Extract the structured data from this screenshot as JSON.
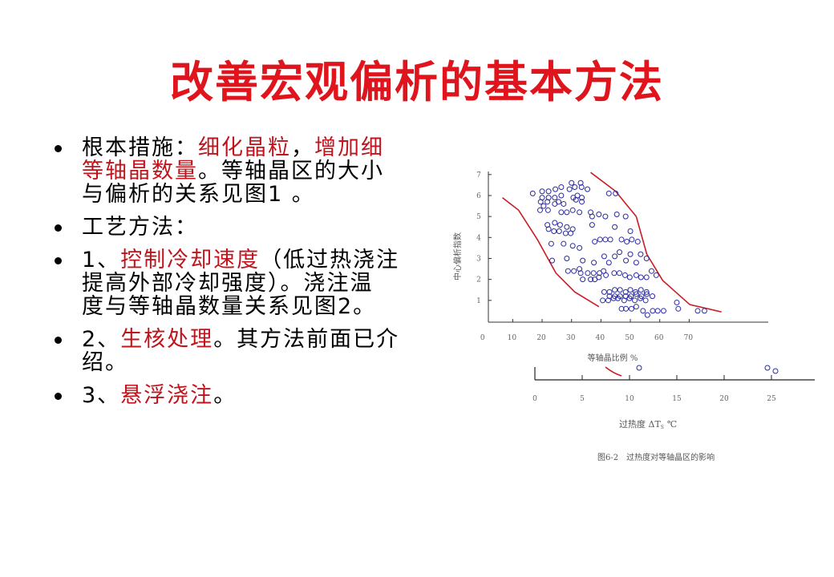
{
  "title": "改善宏观偏析的基本方法",
  "bullets": [
    {
      "lines": [
        [
          {
            "text": "根本措施：",
            "red": false
          },
          {
            "text": "细化晶粒",
            "red": true
          },
          {
            "text": "，",
            "red": false
          },
          {
            "text": "增加细",
            "red": true
          }
        ],
        [
          {
            "text": "等轴晶数量",
            "red": true
          },
          {
            "text": "。等轴晶区的大小",
            "red": false
          }
        ],
        [
          {
            "text": "与偏析的关系见图1 。",
            "red": false
          }
        ]
      ]
    },
    {
      "lines": [
        [
          {
            "text": "工艺方法：",
            "red": false
          }
        ]
      ]
    },
    {
      "lines": [
        [
          {
            "text": " 1、",
            "red": false
          },
          {
            "text": "控制冷却速度",
            "red": true
          },
          {
            "text": "（低过热浇注",
            "red": false
          }
        ],
        [
          {
            "text": "提高外部冷却强度）。浇注温",
            "red": false
          }
        ],
        [
          {
            "text": "度与等轴晶数量关系见图2。",
            "red": false
          }
        ]
      ]
    },
    {
      "lines": [
        [
          {
            "text": "2、",
            "red": false
          },
          {
            "text": "生核处理",
            "red": true
          },
          {
            "text": "。其方法前面已介",
            "red": false
          }
        ],
        [
          {
            "text": "绍。",
            "red": false
          }
        ]
      ]
    },
    {
      "lines": [
        [
          {
            "text": "3、",
            "red": false
          },
          {
            "text": "悬浮浇注",
            "red": true
          },
          {
            "text": "。",
            "red": false
          }
        ]
      ]
    }
  ],
  "colors": {
    "title": "#e0141c",
    "highlight": "#c0141c",
    "points": "#2a2aa0",
    "curves": "#c81e28"
  },
  "chart_data": [
    {
      "type": "scatter",
      "xlabel": "等轴晶比例 %",
      "ylabel": "中心偏析指数",
      "xlim": [
        0,
        80
      ],
      "ylim": [
        0,
        7
      ],
      "xticks": [
        "0",
        "10",
        "20",
        "30",
        "40",
        "50",
        "60",
        "70"
      ],
      "yticks": [
        "1",
        "2",
        "3",
        "4",
        "5",
        "6",
        "7"
      ],
      "grid": false,
      "points": [
        [
          16.8,
          6.1
        ],
        [
          20,
          6.2
        ],
        [
          22.2,
          6.2
        ],
        [
          24.5,
          6.3
        ],
        [
          26.5,
          6.4
        ],
        [
          20,
          5.9
        ],
        [
          22.2,
          5.9
        ],
        [
          24.3,
          5.9
        ],
        [
          26.5,
          6.0
        ],
        [
          29.3,
          6.3
        ],
        [
          30,
          6.6
        ],
        [
          31.1,
          6.4
        ],
        [
          33.1,
          6.6
        ],
        [
          33.4,
          6.4
        ],
        [
          35.4,
          6.3
        ],
        [
          30.6,
          5.9
        ],
        [
          32,
          6.0
        ],
        [
          33.5,
          5.9
        ],
        [
          31.5,
          5.8
        ],
        [
          33.5,
          5.7
        ],
        [
          19.5,
          5.7
        ],
        [
          21.8,
          5.7
        ],
        [
          25.6,
          5.7
        ],
        [
          27.3,
          5.6
        ],
        [
          24.3,
          5.6
        ],
        [
          20.5,
          5.5
        ],
        [
          19.3,
          5.3
        ],
        [
          22,
          5.3
        ],
        [
          26.5,
          5.2
        ],
        [
          28.4,
          5.2
        ],
        [
          30.4,
          5.3
        ],
        [
          32.7,
          5.2
        ],
        [
          36.5,
          5.2
        ],
        [
          37,
          5.0
        ],
        [
          39.3,
          5.1
        ],
        [
          41.5,
          5.0
        ],
        [
          42.7,
          6.1
        ],
        [
          45,
          6.1
        ],
        [
          45.4,
          5.1
        ],
        [
          48.4,
          5.0
        ],
        [
          21.8,
          4.6
        ],
        [
          24.3,
          4.7
        ],
        [
          26.1,
          4.6
        ],
        [
          28.4,
          4.5
        ],
        [
          22.2,
          4.4
        ],
        [
          24,
          4.3
        ],
        [
          25.8,
          4.3
        ],
        [
          28,
          4.2
        ],
        [
          29.7,
          4.2
        ],
        [
          30.4,
          4.4
        ],
        [
          37,
          4.6
        ],
        [
          44.7,
          4.5
        ],
        [
          50,
          4.3
        ],
        [
          23.1,
          3.7
        ],
        [
          27.3,
          3.7
        ],
        [
          30.4,
          3.6
        ],
        [
          32.7,
          3.5
        ],
        [
          37.9,
          3.8
        ],
        [
          39.7,
          3.9
        ],
        [
          41.5,
          3.9
        ],
        [
          43.2,
          3.9
        ],
        [
          47,
          3.9
        ],
        [
          48.8,
          3.8
        ],
        [
          50.5,
          3.9
        ],
        [
          52.5,
          3.8
        ],
        [
          23.4,
          2.9
        ],
        [
          28.4,
          3.0
        ],
        [
          33.8,
          2.9
        ],
        [
          37.6,
          2.8
        ],
        [
          41.1,
          3.1
        ],
        [
          42.7,
          2.8
        ],
        [
          44.7,
          3.1
        ],
        [
          46.3,
          3.3
        ],
        [
          48.5,
          2.9
        ],
        [
          50,
          3.2
        ],
        [
          52,
          2.8
        ],
        [
          53.5,
          3.2
        ],
        [
          55.5,
          3.0
        ],
        [
          28.8,
          2.4
        ],
        [
          30.8,
          2.4
        ],
        [
          32.7,
          2.5
        ],
        [
          33.1,
          2.3
        ],
        [
          35.5,
          2.3
        ],
        [
          37.5,
          2.3
        ],
        [
          39.5,
          2.3
        ],
        [
          40.9,
          2.4
        ],
        [
          33.8,
          2.0
        ],
        [
          36.5,
          2.0
        ],
        [
          37.9,
          2.0
        ],
        [
          39.3,
          2.1
        ],
        [
          41.7,
          2.2
        ],
        [
          44.5,
          2.3
        ],
        [
          46.3,
          2.3
        ],
        [
          48.2,
          2.2
        ],
        [
          49.8,
          2.1
        ],
        [
          52,
          2.2
        ],
        [
          53.6,
          2.1
        ],
        [
          55.5,
          2.1
        ],
        [
          57.2,
          2.4
        ],
        [
          58.8,
          2.2
        ],
        [
          41.1,
          1.4
        ],
        [
          42.9,
          1.4
        ],
        [
          44.7,
          1.5
        ],
        [
          46.5,
          1.5
        ],
        [
          48.4,
          1.4
        ],
        [
          50,
          1.5
        ],
        [
          51.8,
          1.4
        ],
        [
          53.6,
          1.5
        ],
        [
          55.5,
          1.4
        ],
        [
          42.9,
          1.2
        ],
        [
          44.7,
          1.2
        ],
        [
          46.5,
          1.2
        ],
        [
          48.4,
          1.2
        ],
        [
          50.2,
          1.2
        ],
        [
          52,
          1.3
        ],
        [
          53.8,
          1.2
        ],
        [
          55.6,
          1.3
        ],
        [
          57.5,
          1.2
        ],
        [
          40.6,
          1.0
        ],
        [
          42.5,
          1.0
        ],
        [
          44.3,
          1.1
        ],
        [
          45.8,
          1.1
        ],
        [
          47.9,
          1.0
        ],
        [
          49.7,
          1.1
        ],
        [
          51.5,
          1.0
        ],
        [
          53.4,
          1.1
        ],
        [
          55.2,
          1.0
        ],
        [
          47,
          0.6
        ],
        [
          48.5,
          0.6
        ],
        [
          50.4,
          0.6
        ],
        [
          52,
          0.7
        ],
        [
          54.3,
          0.5
        ],
        [
          55.8,
          0.3
        ],
        [
          57.6,
          0.5
        ],
        [
          59.3,
          0.5
        ],
        [
          61.3,
          0.5
        ],
        [
          65.8,
          0.9
        ],
        [
          66.3,
          0.6
        ],
        [
          72.9,
          0.5
        ],
        [
          75.2,
          0.5
        ]
      ],
      "boundary_curves": [
        [
          [
            6.5,
            5.9
          ],
          [
            12,
            5.3
          ],
          [
            18.4,
            3.9
          ],
          [
            24.7,
            2.3
          ],
          [
            31.1,
            1.4
          ],
          [
            39.3,
            0.7
          ]
        ],
        [
          [
            36.5,
            7.1
          ],
          [
            45,
            6.2
          ],
          [
            52,
            5.0
          ],
          [
            55.6,
            3.2
          ],
          [
            61,
            1.95
          ],
          [
            70.2,
            0.8
          ],
          [
            81,
            0.45
          ]
        ]
      ]
    },
    {
      "type": "scatter",
      "xlabel": "过热度 ΔT",
      "xlabel_sub": "S",
      "xlabel_unit": "℃",
      "xlim": [
        0,
        29
      ],
      "xticks": [
        "0",
        "5",
        "10",
        "15",
        "20",
        "25"
      ],
      "caption": "图6-2　过热度对等轴晶区的影响"
    }
  ]
}
